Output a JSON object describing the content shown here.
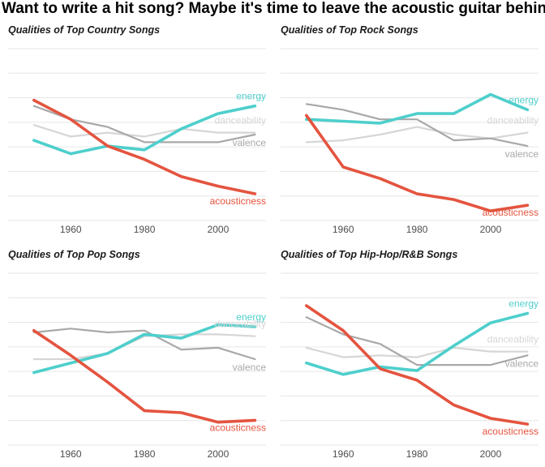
{
  "title": "Want to write a hit song? Maybe it's time to leave the acoustic guitar behind",
  "colors": {
    "energy": "#4ecfcc",
    "danceability": "#d6d6d6",
    "valence": "#a8a8a8",
    "acousticness": "#e4543f",
    "grid": "#e6e6e6"
  },
  "chart_data": [
    {
      "type": "line",
      "title": "Qualities of Top Country Songs",
      "x": [
        1950,
        1960,
        1970,
        1980,
        1990,
        2000,
        2010
      ],
      "xticks": [
        1960,
        1980,
        2000
      ],
      "ylim": [
        0,
        0.9
      ],
      "grid": true,
      "legend": "direct labels at right end of lines",
      "series": [
        {
          "name": "energy",
          "values": [
            0.42,
            0.35,
            0.39,
            0.37,
            0.48,
            0.56,
            0.6
          ]
        },
        {
          "name": "danceability",
          "values": [
            0.5,
            0.44,
            0.46,
            0.44,
            0.48,
            0.46,
            0.46
          ]
        },
        {
          "name": "valence",
          "values": [
            0.6,
            0.53,
            0.49,
            0.41,
            0.41,
            0.41,
            0.45
          ]
        },
        {
          "name": "acousticness",
          "values": [
            0.63,
            0.53,
            0.39,
            0.32,
            0.23,
            0.18,
            0.14
          ]
        }
      ]
    },
    {
      "type": "line",
      "title": "Qualities of Top Rock Songs",
      "x": [
        1950,
        1960,
        1970,
        1980,
        1990,
        2000,
        2010
      ],
      "xticks": [
        1960,
        1980,
        2000
      ],
      "ylim": [
        0,
        0.9
      ],
      "grid": true,
      "legend": "direct labels at right end of lines",
      "series": [
        {
          "name": "energy",
          "values": [
            0.53,
            0.52,
            0.51,
            0.56,
            0.56,
            0.66,
            0.58
          ]
        },
        {
          "name": "danceability",
          "values": [
            0.41,
            0.42,
            0.45,
            0.49,
            0.45,
            0.43,
            0.46
          ]
        },
        {
          "name": "valence",
          "values": [
            0.61,
            0.58,
            0.53,
            0.53,
            0.42,
            0.43,
            0.39
          ]
        },
        {
          "name": "acousticness",
          "values": [
            0.55,
            0.28,
            0.22,
            0.14,
            0.11,
            0.05,
            0.08
          ]
        }
      ]
    },
    {
      "type": "line",
      "title": "Qualities of Top Pop Songs",
      "x": [
        1950,
        1960,
        1970,
        1980,
        1990,
        2000,
        2010
      ],
      "xticks": [
        1960,
        1980,
        2000
      ],
      "ylim": [
        0,
        0.9
      ],
      "grid": true,
      "legend": "direct labels at right end of lines",
      "series": [
        {
          "name": "energy",
          "values": [
            0.38,
            0.43,
            0.48,
            0.58,
            0.56,
            0.63,
            0.62
          ]
        },
        {
          "name": "danceability",
          "values": [
            0.45,
            0.45,
            0.48,
            0.57,
            0.58,
            0.58,
            0.57
          ]
        },
        {
          "name": "valence",
          "values": [
            0.59,
            0.61,
            0.59,
            0.6,
            0.5,
            0.51,
            0.45
          ]
        },
        {
          "name": "acousticness",
          "values": [
            0.6,
            0.47,
            0.33,
            0.18,
            0.17,
            0.12,
            0.13
          ]
        }
      ]
    },
    {
      "type": "line",
      "title": "Qualities of Top Hip-Hop/R&B Songs",
      "x": [
        1950,
        1960,
        1970,
        1980,
        1990,
        2000,
        2010
      ],
      "xticks": [
        1960,
        1980,
        2000
      ],
      "ylim": [
        0,
        0.9
      ],
      "grid": true,
      "legend": "direct labels at right end of lines",
      "series": [
        {
          "name": "energy",
          "values": [
            0.43,
            0.37,
            0.41,
            0.39,
            0.52,
            0.64,
            0.69
          ]
        },
        {
          "name": "danceability",
          "values": [
            0.51,
            0.46,
            0.47,
            0.46,
            0.51,
            0.49,
            0.49
          ]
        },
        {
          "name": "valence",
          "values": [
            0.67,
            0.58,
            0.53,
            0.42,
            0.42,
            0.42,
            0.47
          ]
        },
        {
          "name": "acousticness",
          "values": [
            0.73,
            0.6,
            0.4,
            0.34,
            0.21,
            0.14,
            0.11
          ]
        }
      ]
    }
  ]
}
